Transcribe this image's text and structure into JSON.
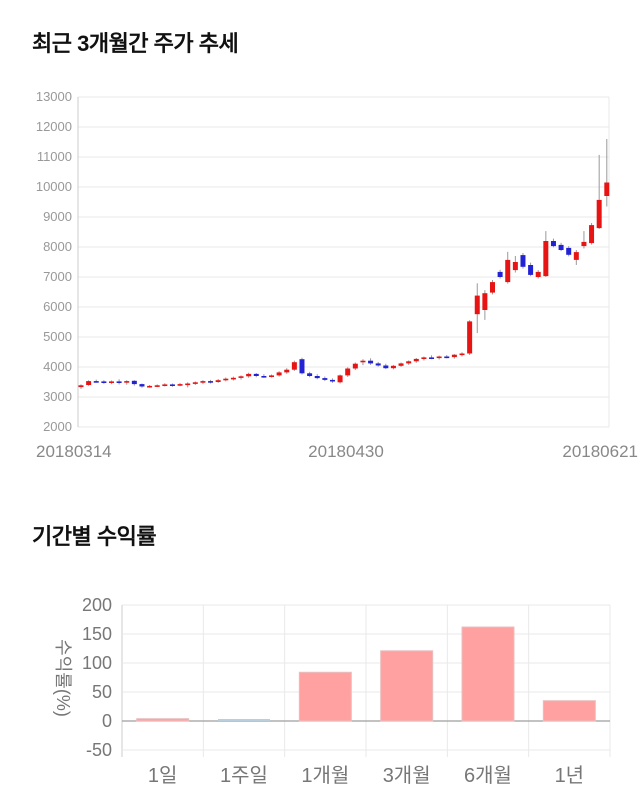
{
  "page": {
    "background": "#ffffff"
  },
  "chart_data": [
    {
      "type": "candlestick",
      "title": "최근 3개월간 주가 추세",
      "x_axis_labels": [
        "20180314",
        "20180430",
        "20180621"
      ],
      "y_ticks": [
        13000,
        12000,
        11000,
        10000,
        9000,
        8000,
        7000,
        6000,
        5000,
        4000,
        3000,
        2000
      ],
      "ylim": [
        2000,
        13000
      ],
      "grid": true,
      "legend": "none",
      "colors": {
        "up": "#e81414",
        "down": "#2323d6",
        "wick": "#999999",
        "grid": "#e9e9e9",
        "axis": "#cccccc",
        "tick_text": "#999999",
        "date_text": "#888888"
      },
      "ohlc": [
        [
          3330,
          3420,
          3270,
          3390
        ],
        [
          3400,
          3560,
          3370,
          3530
        ],
        [
          3530,
          3580,
          3480,
          3520
        ],
        [
          3520,
          3560,
          3440,
          3490
        ],
        [
          3490,
          3550,
          3430,
          3520
        ],
        [
          3520,
          3590,
          3420,
          3490
        ],
        [
          3490,
          3560,
          3410,
          3530
        ],
        [
          3540,
          3560,
          3380,
          3430
        ],
        [
          3430,
          3450,
          3310,
          3350
        ],
        [
          3350,
          3400,
          3310,
          3370
        ],
        [
          3370,
          3420,
          3330,
          3390
        ],
        [
          3390,
          3460,
          3350,
          3420
        ],
        [
          3420,
          3450,
          3340,
          3400
        ],
        [
          3400,
          3470,
          3360,
          3430
        ],
        [
          3430,
          3490,
          3320,
          3450
        ],
        [
          3450,
          3520,
          3400,
          3490
        ],
        [
          3490,
          3560,
          3430,
          3530
        ],
        [
          3530,
          3570,
          3450,
          3500
        ],
        [
          3500,
          3600,
          3470,
          3560
        ],
        [
          3560,
          3650,
          3520,
          3610
        ],
        [
          3610,
          3680,
          3550,
          3640
        ],
        [
          3640,
          3720,
          3580,
          3690
        ],
        [
          3690,
          3810,
          3640,
          3770
        ],
        [
          3770,
          3800,
          3660,
          3700
        ],
        [
          3700,
          3760,
          3640,
          3680
        ],
        [
          3680,
          3750,
          3650,
          3720
        ],
        [
          3720,
          3860,
          3680,
          3820
        ],
        [
          3820,
          3960,
          3770,
          3910
        ],
        [
          3910,
          4210,
          3870,
          4160
        ],
        [
          4260,
          4310,
          3750,
          3790
        ],
        [
          3790,
          3840,
          3660,
          3700
        ],
        [
          3700,
          3760,
          3590,
          3630
        ],
        [
          3630,
          3680,
          3530,
          3570
        ],
        [
          3570,
          3620,
          3470,
          3540
        ],
        [
          3490,
          3750,
          3450,
          3720
        ],
        [
          3720,
          3990,
          3670,
          3950
        ],
        [
          3950,
          4150,
          3900,
          4110
        ],
        [
          4160,
          4260,
          4060,
          4210
        ],
        [
          4210,
          4290,
          4070,
          4120
        ],
        [
          4120,
          4170,
          4010,
          4050
        ],
        [
          4050,
          4110,
          3930,
          3960
        ],
        [
          3960,
          4070,
          3920,
          4040
        ],
        [
          4040,
          4150,
          4000,
          4120
        ],
        [
          4120,
          4220,
          4070,
          4190
        ],
        [
          4190,
          4300,
          4140,
          4270
        ],
        [
          4270,
          4350,
          4220,
          4320
        ],
        [
          4320,
          4390,
          4260,
          4310
        ],
        [
          4310,
          4380,
          4250,
          4350
        ],
        [
          4350,
          4400,
          4290,
          4330
        ],
        [
          4330,
          4430,
          4280,
          4410
        ],
        [
          4410,
          4490,
          4350,
          4450
        ],
        [
          4450,
          5560,
          4400,
          5520
        ],
        [
          5760,
          6790,
          5130,
          6380
        ],
        [
          5900,
          6560,
          5570,
          6460
        ],
        [
          6480,
          6900,
          6420,
          6830
        ],
        [
          7170,
          7240,
          6950,
          7000
        ],
        [
          6830,
          7840,
          6780,
          7570
        ],
        [
          7230,
          7700,
          7150,
          7500
        ],
        [
          7730,
          7800,
          7280,
          7340
        ],
        [
          7400,
          7480,
          7030,
          7070
        ],
        [
          7000,
          7230,
          6950,
          7170
        ],
        [
          7030,
          8530,
          7000,
          8200
        ],
        [
          8200,
          8280,
          7990,
          8030
        ],
        [
          8070,
          8140,
          7860,
          7900
        ],
        [
          7970,
          8030,
          7690,
          7740
        ],
        [
          7570,
          7900,
          7400,
          7830
        ],
        [
          8030,
          8530,
          7950,
          8170
        ],
        [
          8130,
          8800,
          8080,
          8730
        ],
        [
          8630,
          11070,
          8600,
          9570
        ],
        [
          9700,
          11600,
          9350,
          10150
        ]
      ]
    },
    {
      "type": "bar",
      "title": "기간별 수익률",
      "ylabel": "수익률(%)",
      "categories": [
        "1일",
        "1주일",
        "1개월",
        "3개월",
        "6개월",
        "1년"
      ],
      "values": [
        4,
        0,
        84,
        121,
        162,
        35
      ],
      "y_ticks": [
        200,
        150,
        100,
        50,
        0,
        -50
      ],
      "ylim": [
        -50,
        200
      ],
      "grid": true,
      "legend": "none",
      "colors": {
        "bar": "#ffa1a1",
        "bar_border": "#e9bebe",
        "zero_bar": "#b9cfdd",
        "grid": "#e9e9e9",
        "zero_line": "#9e9e9e",
        "tick_text": "#777777",
        "category_text": "#777777",
        "ylabel_text": "#777777"
      }
    }
  ]
}
